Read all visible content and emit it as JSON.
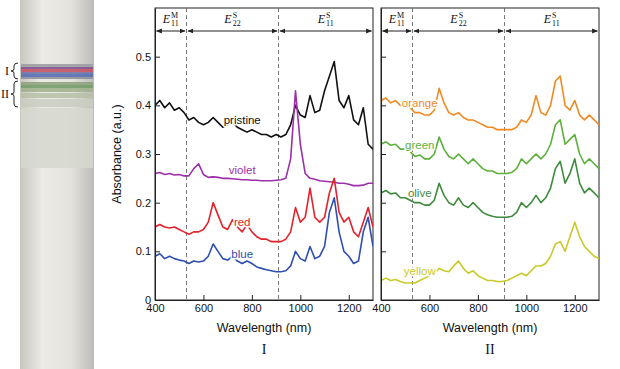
{
  "tube": {
    "labels": [
      "I",
      "II"
    ]
  },
  "chart_data": [
    {
      "type": "line",
      "title": "I",
      "x_label": "Wavelength (nm)",
      "y_label": "Absorbance (a.u.)",
      "xlim": [
        400,
        1300
      ],
      "ylim": [
        0,
        0.6
      ],
      "xticks": [
        400,
        600,
        800,
        1000,
        1200
      ],
      "yticks": [
        0,
        0.1,
        0.2,
        0.3,
        0.4,
        0.5
      ],
      "tick_labels": true,
      "grid": false,
      "regions": [
        {
          "label": "E",
          "sup": "M",
          "sub": "11",
          "from": 400,
          "to": 530
        },
        {
          "label": "E",
          "sup": "S",
          "sub": "22",
          "from": 530,
          "to": 910
        },
        {
          "label": "E",
          "sup": "S",
          "sub": "11",
          "from": 910,
          "to": 1300
        }
      ],
      "x": [
        400,
        420,
        440,
        460,
        480,
        500,
        520,
        540,
        560,
        580,
        600,
        620,
        640,
        660,
        680,
        700,
        720,
        740,
        760,
        780,
        800,
        820,
        840,
        860,
        880,
        900,
        920,
        940,
        960,
        980,
        1000,
        1020,
        1040,
        1060,
        1080,
        1100,
        1120,
        1140,
        1160,
        1180,
        1200,
        1220,
        1240,
        1260,
        1280,
        1300
      ],
      "series": [
        {
          "name": "pristine",
          "color": "#111111",
          "values": [
            0.4,
            0.41,
            0.395,
            0.405,
            0.39,
            0.395,
            0.385,
            0.37,
            0.375,
            0.365,
            0.36,
            0.365,
            0.375,
            0.365,
            0.355,
            0.36,
            0.365,
            0.355,
            0.35,
            0.345,
            0.35,
            0.345,
            0.34,
            0.34,
            0.335,
            0.34,
            0.335,
            0.34,
            0.36,
            0.4,
            0.38,
            0.375,
            0.42,
            0.385,
            0.39,
            0.43,
            0.46,
            0.49,
            0.41,
            0.395,
            0.42,
            0.37,
            0.36,
            0.395,
            0.32,
            0.31
          ]
        },
        {
          "name": "violet",
          "color": "#9b30a8",
          "values": [
            0.26,
            0.262,
            0.258,
            0.26,
            0.257,
            0.258,
            0.255,
            0.255,
            0.27,
            0.28,
            0.258,
            0.252,
            0.253,
            0.252,
            0.25,
            0.25,
            0.249,
            0.248,
            0.247,
            0.247,
            0.246,
            0.246,
            0.245,
            0.245,
            0.245,
            0.246,
            0.247,
            0.25,
            0.29,
            0.43,
            0.32,
            0.26,
            0.25,
            0.248,
            0.245,
            0.244,
            0.243,
            0.242,
            0.24,
            0.24,
            0.238,
            0.235,
            0.235,
            0.236,
            0.24,
            0.24
          ]
        },
        {
          "name": "red",
          "color": "#e3222b",
          "values": [
            0.15,
            0.155,
            0.15,
            0.148,
            0.15,
            0.145,
            0.14,
            0.135,
            0.14,
            0.14,
            0.145,
            0.16,
            0.2,
            0.175,
            0.15,
            0.145,
            0.165,
            0.15,
            0.14,
            0.155,
            0.14,
            0.13,
            0.125,
            0.125,
            0.12,
            0.12,
            0.12,
            0.125,
            0.14,
            0.19,
            0.16,
            0.17,
            0.23,
            0.17,
            0.16,
            0.17,
            0.22,
            0.25,
            0.18,
            0.16,
            0.17,
            0.14,
            0.13,
            0.16,
            0.19,
            0.15
          ]
        },
        {
          "name": "blue",
          "color": "#2f4fb0",
          "values": [
            0.09,
            0.095,
            0.085,
            0.09,
            0.085,
            0.082,
            0.08,
            0.075,
            0.08,
            0.078,
            0.08,
            0.09,
            0.115,
            0.1,
            0.085,
            0.082,
            0.09,
            0.08,
            0.075,
            0.08,
            0.075,
            0.068,
            0.065,
            0.062,
            0.06,
            0.058,
            0.058,
            0.06,
            0.07,
            0.1,
            0.085,
            0.08,
            0.11,
            0.085,
            0.09,
            0.11,
            0.18,
            0.21,
            0.14,
            0.1,
            0.09,
            0.075,
            0.08,
            0.14,
            0.17,
            0.11
          ]
        }
      ]
    },
    {
      "type": "line",
      "title": "II",
      "x_label": "Wavelength (nm)",
      "xlim": [
        400,
        1300
      ],
      "ylim": [
        0,
        0.6
      ],
      "xticks": [
        400,
        600,
        800,
        1000,
        1200
      ],
      "yticks": [
        0,
        0.1,
        0.2,
        0.3,
        0.4,
        0.5
      ],
      "tick_labels": "x",
      "grid": false,
      "regions": [
        {
          "label": "E",
          "sup": "M",
          "sub": "11",
          "from": 400,
          "to": 530
        },
        {
          "label": "E",
          "sup": "S",
          "sub": "22",
          "from": 530,
          "to": 910
        },
        {
          "label": "E",
          "sup": "S",
          "sub": "11",
          "from": 910,
          "to": 1300
        }
      ],
      "x": [
        400,
        420,
        440,
        460,
        480,
        500,
        520,
        540,
        560,
        580,
        600,
        620,
        640,
        660,
        680,
        700,
        720,
        740,
        760,
        780,
        800,
        820,
        840,
        860,
        880,
        900,
        920,
        940,
        960,
        980,
        1000,
        1020,
        1040,
        1060,
        1080,
        1100,
        1120,
        1140,
        1160,
        1180,
        1200,
        1220,
        1240,
        1260,
        1280,
        1300
      ],
      "series": [
        {
          "name": "orange",
          "color": "#f08a24",
          "values": [
            0.41,
            0.415,
            0.405,
            0.41,
            0.4,
            0.4,
            0.395,
            0.385,
            0.385,
            0.38,
            0.38,
            0.39,
            0.435,
            0.405,
            0.385,
            0.38,
            0.385,
            0.375,
            0.37,
            0.37,
            0.365,
            0.36,
            0.355,
            0.355,
            0.35,
            0.35,
            0.35,
            0.35,
            0.355,
            0.37,
            0.365,
            0.38,
            0.42,
            0.385,
            0.38,
            0.4,
            0.45,
            0.46,
            0.4,
            0.39,
            0.41,
            0.38,
            0.37,
            0.38,
            0.37,
            0.36
          ]
        },
        {
          "name": "green",
          "color": "#5cb03c",
          "values": [
            0.32,
            0.325,
            0.318,
            0.32,
            0.31,
            0.31,
            0.305,
            0.295,
            0.298,
            0.29,
            0.29,
            0.3,
            0.335,
            0.31,
            0.295,
            0.29,
            0.3,
            0.29,
            0.28,
            0.29,
            0.28,
            0.27,
            0.265,
            0.265,
            0.26,
            0.26,
            0.26,
            0.262,
            0.27,
            0.29,
            0.28,
            0.29,
            0.3,
            0.29,
            0.3,
            0.32,
            0.36,
            0.37,
            0.32,
            0.33,
            0.34,
            0.3,
            0.28,
            0.29,
            0.28,
            0.27
          ]
        },
        {
          "name": "olive",
          "color": "#3f8a3c",
          "values": [
            0.22,
            0.225,
            0.218,
            0.22,
            0.21,
            0.21,
            0.205,
            0.2,
            0.2,
            0.195,
            0.195,
            0.205,
            0.24,
            0.215,
            0.2,
            0.195,
            0.21,
            0.195,
            0.19,
            0.2,
            0.19,
            0.18,
            0.175,
            0.172,
            0.17,
            0.17,
            0.17,
            0.172,
            0.18,
            0.2,
            0.19,
            0.2,
            0.215,
            0.2,
            0.21,
            0.23,
            0.27,
            0.285,
            0.24,
            0.26,
            0.29,
            0.24,
            0.22,
            0.23,
            0.22,
            0.21
          ]
        },
        {
          "name": "yellow",
          "color": "#c9c92a",
          "values": [
            0.04,
            0.045,
            0.04,
            0.042,
            0.038,
            0.035,
            0.035,
            0.035,
            0.04,
            0.045,
            0.05,
            0.055,
            0.065,
            0.06,
            0.058,
            0.07,
            0.08,
            0.065,
            0.055,
            0.06,
            0.05,
            0.045,
            0.04,
            0.04,
            0.038,
            0.038,
            0.04,
            0.045,
            0.05,
            0.055,
            0.05,
            0.06,
            0.07,
            0.07,
            0.075,
            0.09,
            0.115,
            0.12,
            0.1,
            0.13,
            0.16,
            0.13,
            0.11,
            0.1,
            0.09,
            0.085
          ]
        }
      ]
    }
  ]
}
